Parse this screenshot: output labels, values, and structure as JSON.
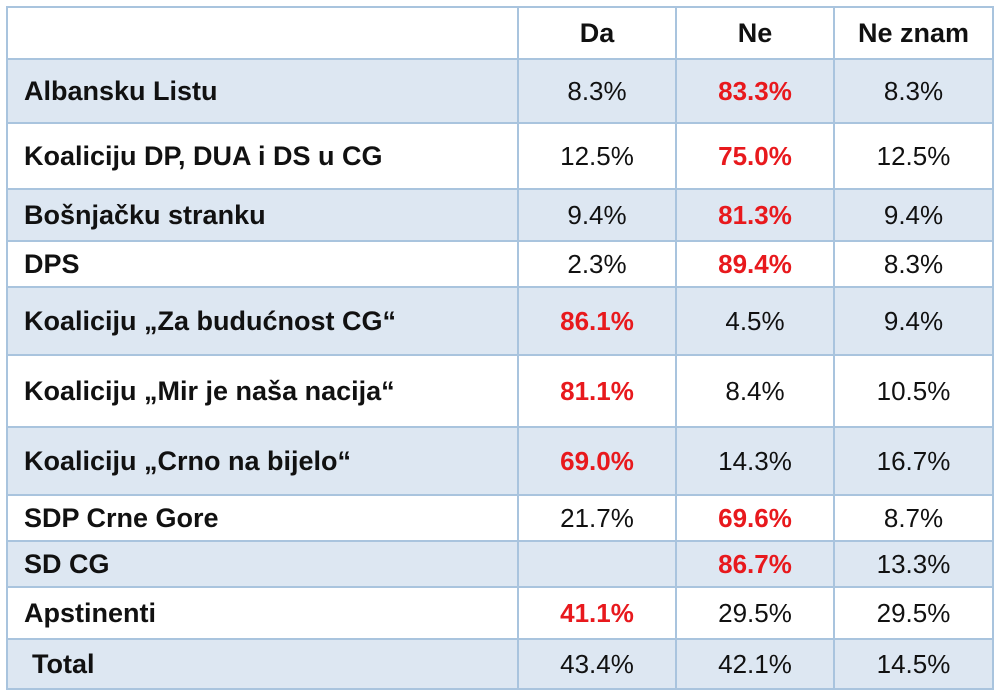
{
  "table": {
    "headers": [
      "",
      "Da",
      "Ne",
      "Ne znam"
    ],
    "rows": [
      {
        "label": "Albansku Listu",
        "da": "8.3%",
        "ne": "83.3%",
        "neznam": "8.3%",
        "highlight": "ne"
      },
      {
        "label": "Koaliciju DP, DUA i DS u CG",
        "da": "12.5%",
        "ne": "75.0%",
        "neznam": "12.5%",
        "highlight": "ne"
      },
      {
        "label": "Bošnjačku stranku",
        "da": "9.4%",
        "ne": "81.3%",
        "neznam": "9.4%",
        "highlight": "ne"
      },
      {
        "label": "DPS",
        "da": "2.3%",
        "ne": "89.4%",
        "neznam": "8.3%",
        "highlight": "ne"
      },
      {
        "label": "Koaliciju „Za budućnost CG“",
        "da": "86.1%",
        "ne": "4.5%",
        "neznam": "9.4%",
        "highlight": "da"
      },
      {
        "label": "Koaliciju „Mir je naša nacija“",
        "da": "81.1%",
        "ne": "8.4%",
        "neznam": "10.5%",
        "highlight": "da"
      },
      {
        "label": "Koaliciju „Crno na bijelo“",
        "da": "69.0%",
        "ne": "14.3%",
        "neznam": "16.7%",
        "highlight": "da"
      },
      {
        "label": "SDP Crne Gore",
        "da": "21.7%",
        "ne": "69.6%",
        "neznam": "8.7%",
        "highlight": "ne"
      },
      {
        "label": "SD CG",
        "da": "",
        "ne": "86.7%",
        "neznam": "13.3%",
        "highlight": "ne"
      },
      {
        "label": "Apstinenti",
        "da": "41.1%",
        "ne": "29.5%",
        "neznam": "29.5%",
        "highlight": "da"
      },
      {
        "label": "Total",
        "da": "43.4%",
        "ne": "42.1%",
        "neznam": "14.5%",
        "highlight": ""
      }
    ]
  },
  "colors": {
    "highlight": "#e8191d",
    "shade": "#dde7f2",
    "border": "#a9c4de"
  }
}
